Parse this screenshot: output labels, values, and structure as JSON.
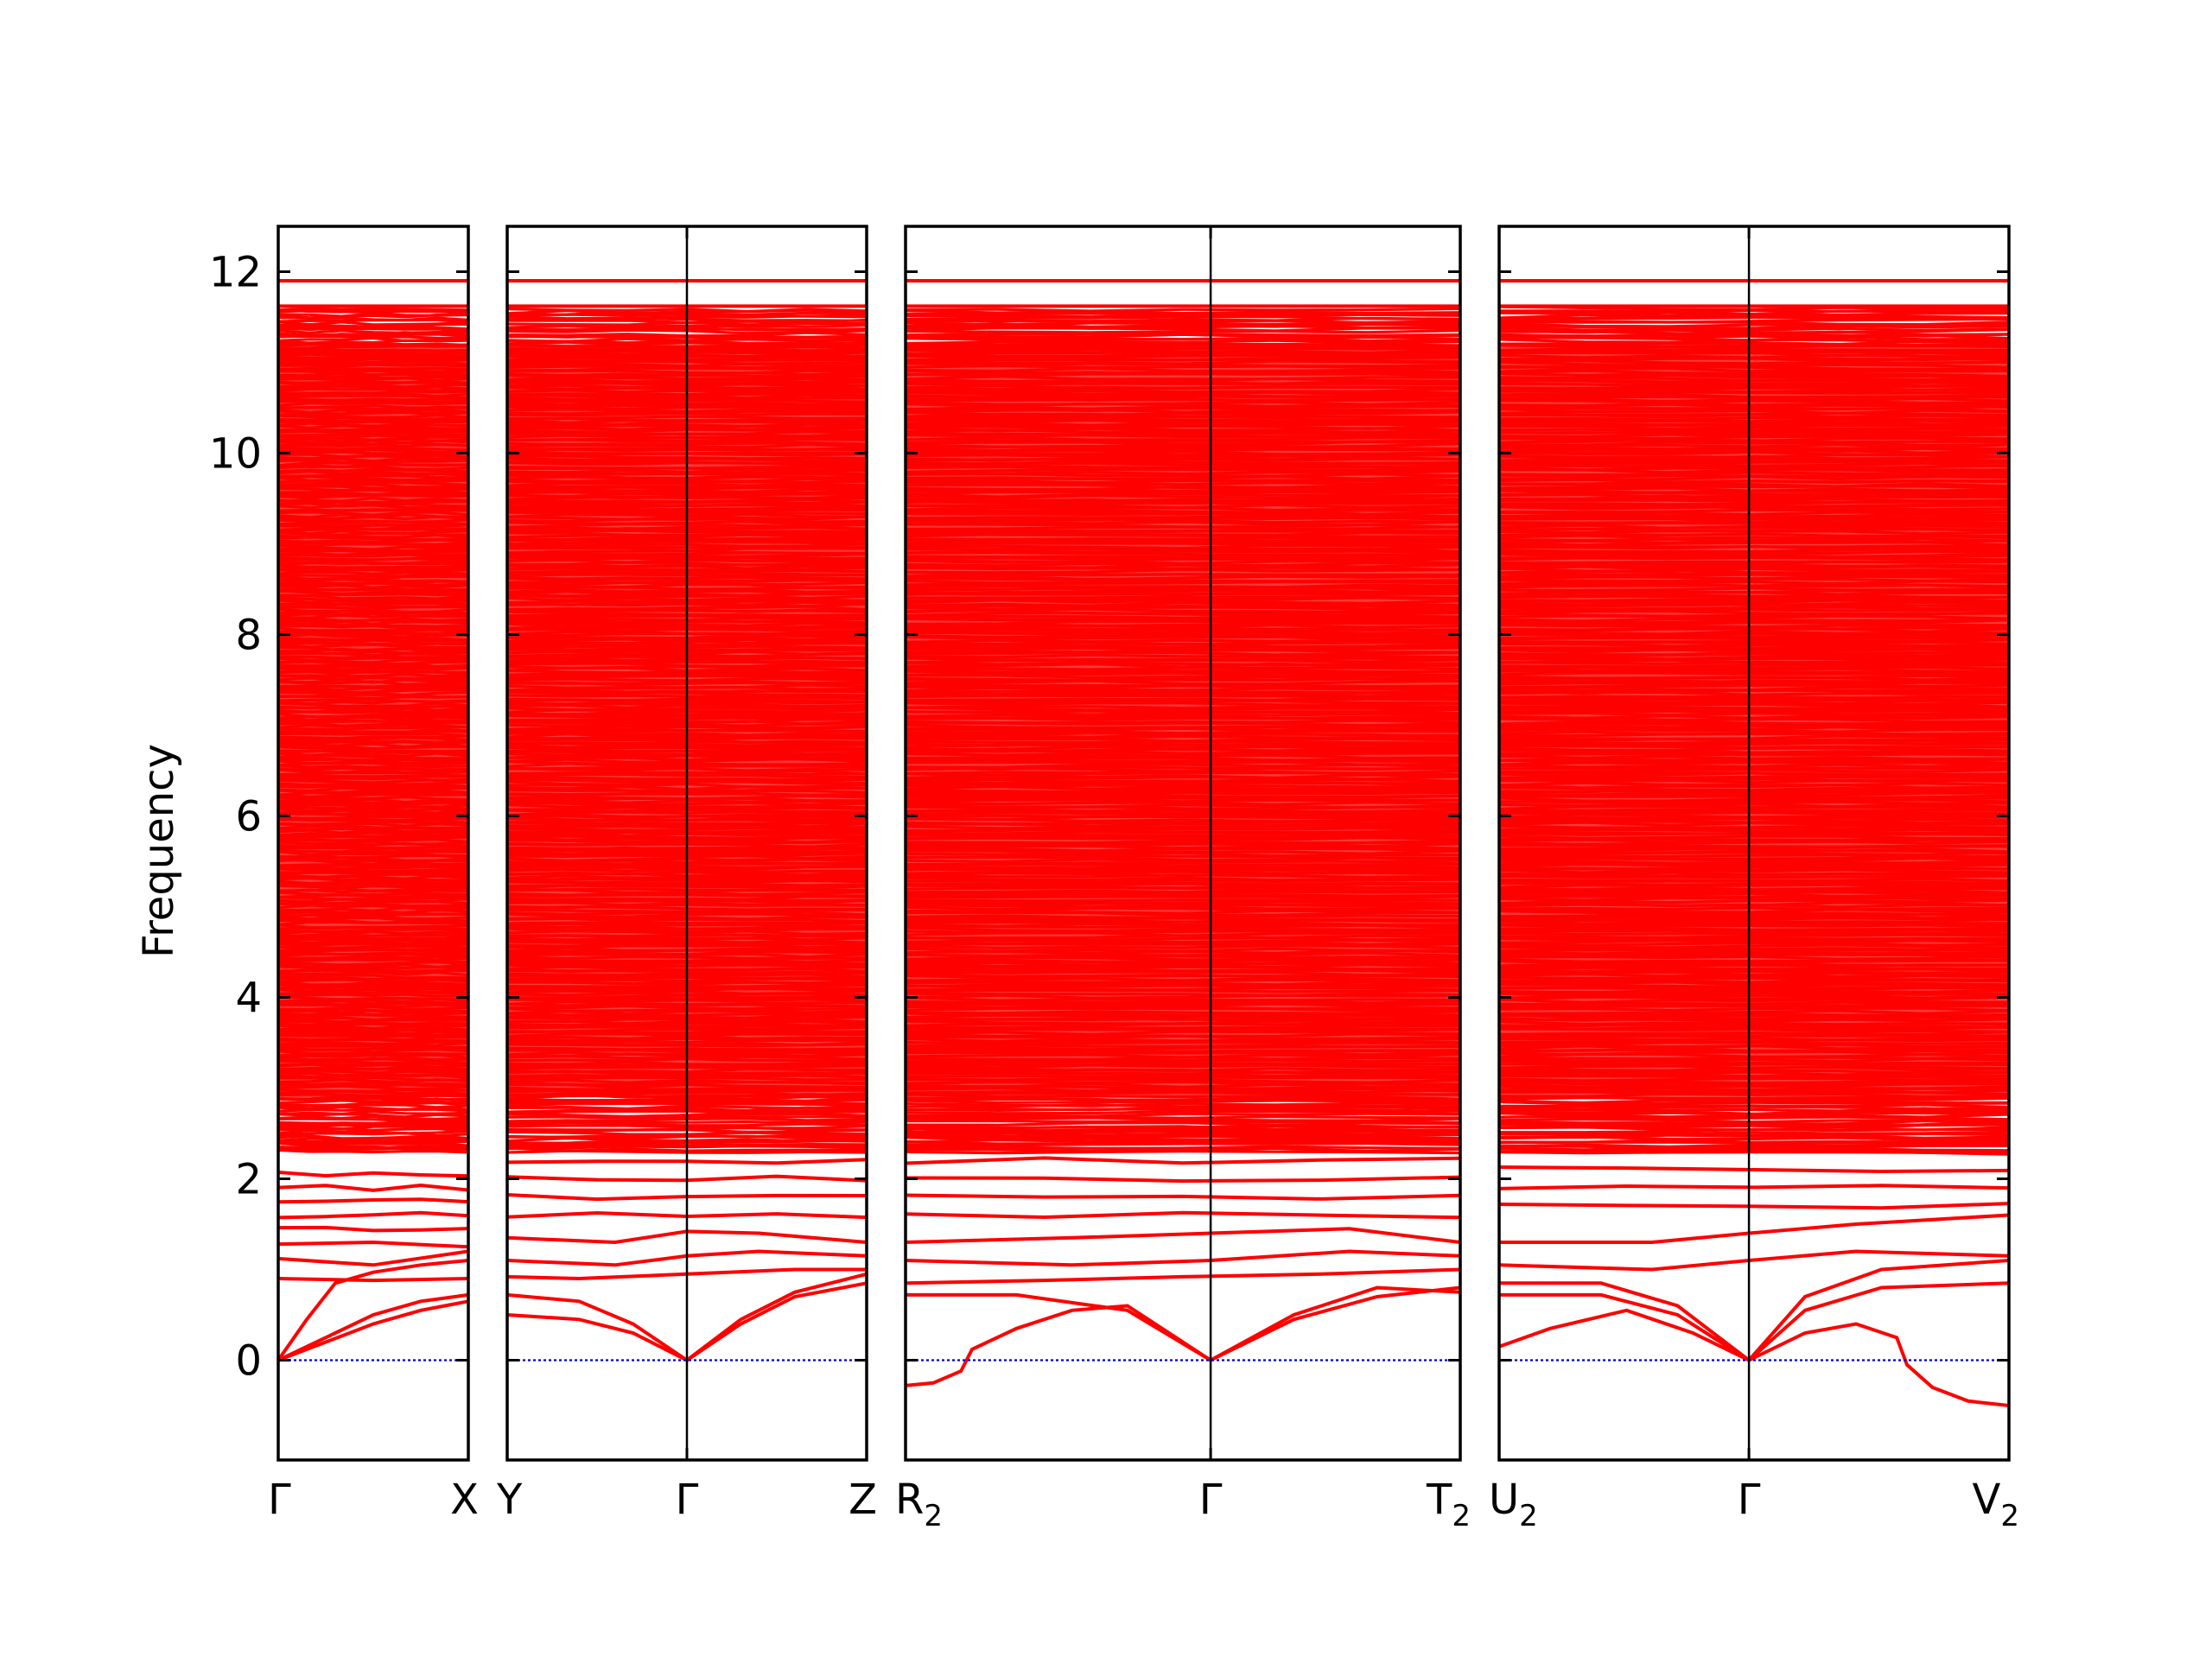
{
  "chart_data": {
    "type": "line",
    "title": "",
    "xlabel": "",
    "ylabel": "Frequency",
    "ylim": [
      -1.1,
      12.5
    ],
    "yticks": [
      0,
      2,
      4,
      6,
      8,
      10,
      12
    ],
    "grid": false,
    "legend": "none",
    "colors": {
      "bands": "#ff0000",
      "zero_line": "#0000cc",
      "frame": "#000000"
    },
    "panels": [
      {
        "xlim": [
          0,
          1
        ],
        "ticks": [
          {
            "x": 0,
            "label": "Γ",
            "sub": ""
          },
          {
            "x": 1,
            "label": "X",
            "sub": ""
          }
        ],
        "bands": [
          {
            "x": [
              0,
              0.25,
              0.5,
              0.75,
              1
            ],
            "y": [
              0,
              0.2,
              0.4,
              0.55,
              0.65
            ]
          },
          {
            "x": [
              0,
              0.25,
              0.5,
              0.75,
              1
            ],
            "y": [
              0,
              0.25,
              0.5,
              0.65,
              0.72
            ]
          },
          {
            "x": [
              0,
              0.15,
              0.3,
              0.5,
              0.75,
              1
            ],
            "y": [
              0,
              0.45,
              0.85,
              0.97,
              1.05,
              1.1
            ]
          },
          {
            "x": [
              0,
              0.5,
              1
            ],
            "y": [
              0.9,
              0.88,
              0.9
            ]
          },
          {
            "x": [
              0,
              0.5,
              1
            ],
            "y": [
              1.12,
              1.05,
              1.2
            ]
          },
          {
            "x": [
              0,
              0.5,
              1
            ],
            "y": [
              1.28,
              1.3,
              1.25
            ]
          }
        ],
        "flat_bands": [
          1.45,
          1.6,
          1.75,
          1.9,
          2.05,
          2.35,
          2.6
        ]
      },
      {
        "xlim": [
          0,
          1
        ],
        "ticks": [
          {
            "x": 0,
            "label": "Y",
            "sub": ""
          },
          {
            "x": 0.5,
            "label": "Γ",
            "sub": ""
          },
          {
            "x": 1,
            "label": "Z",
            "sub": ""
          }
        ],
        "bands": [
          {
            "x": [
              0,
              0.2,
              0.35,
              0.5,
              0.65,
              0.8,
              1
            ],
            "y": [
              0.5,
              0.45,
              0.3,
              0,
              0.4,
              0.7,
              0.85
            ]
          },
          {
            "x": [
              0,
              0.2,
              0.35,
              0.5,
              0.65,
              0.8,
              1
            ],
            "y": [
              0.72,
              0.65,
              0.4,
              0,
              0.45,
              0.75,
              0.95
            ]
          },
          {
            "x": [
              0,
              0.2,
              0.5,
              0.8,
              1
            ],
            "y": [
              0.92,
              0.9,
              0.95,
              1.0,
              1.0
            ]
          },
          {
            "x": [
              0,
              0.3,
              0.5,
              0.7,
              1
            ],
            "y": [
              1.1,
              1.05,
              1.15,
              1.2,
              1.15
            ]
          },
          {
            "x": [
              0,
              0.3,
              0.5,
              0.7,
              1
            ],
            "y": [
              1.35,
              1.3,
              1.42,
              1.4,
              1.3
            ]
          }
        ],
        "flat_bands": [
          1.6,
          1.8,
          2.0,
          2.2,
          2.4
        ]
      },
      {
        "xlim": [
          0,
          1
        ],
        "ticks": [
          {
            "x": 0,
            "label": "R",
            "sub": "2"
          },
          {
            "x": 0.55,
            "label": "Γ",
            "sub": ""
          },
          {
            "x": 1,
            "label": "T",
            "sub": "2"
          }
        ],
        "bands": [
          {
            "x": [
              0,
              0.05,
              0.1,
              0.12,
              0.2,
              0.3,
              0.4,
              0.55,
              0.7,
              0.85,
              1
            ],
            "y": [
              -0.28,
              -0.25,
              -0.12,
              0.12,
              0.35,
              0.55,
              0.6,
              0,
              0.45,
              0.7,
              0.8
            ]
          },
          {
            "x": [
              0,
              0.2,
              0.4,
              0.55,
              0.7,
              0.85,
              1
            ],
            "y": [
              0.72,
              0.72,
              0.55,
              0,
              0.5,
              0.8,
              0.75
            ]
          },
          {
            "x": [
              0,
              0.25,
              0.5,
              0.75,
              1
            ],
            "y": [
              0.85,
              0.88,
              0.92,
              0.95,
              1.0
            ]
          },
          {
            "x": [
              0,
              0.3,
              0.55,
              0.8,
              1
            ],
            "y": [
              1.1,
              1.05,
              1.1,
              1.2,
              1.15
            ]
          },
          {
            "x": [
              0,
              0.3,
              0.55,
              0.8,
              1
            ],
            "y": [
              1.3,
              1.35,
              1.4,
              1.45,
              1.3
            ]
          }
        ],
        "flat_bands": [
          1.6,
          1.8,
          2.0,
          2.2,
          2.45
        ]
      },
      {
        "xlim": [
          0,
          1
        ],
        "ticks": [
          {
            "x": 0,
            "label": "U",
            "sub": "2"
          },
          {
            "x": 0.49,
            "label": "Γ",
            "sub": ""
          },
          {
            "x": 1,
            "label": "V",
            "sub": "2"
          }
        ],
        "bands": [
          {
            "x": [
              0,
              0.1,
              0.25,
              0.38,
              0.49,
              0.6,
              0.7,
              0.78,
              0.8,
              0.85,
              0.92,
              1
            ],
            "y": [
              0.15,
              0.35,
              0.55,
              0.3,
              0,
              0.3,
              0.4,
              0.25,
              -0.05,
              -0.3,
              -0.45,
              -0.5
            ]
          },
          {
            "x": [
              0,
              0.2,
              0.35,
              0.49,
              0.6,
              0.75,
              1
            ],
            "y": [
              0.72,
              0.72,
              0.5,
              0,
              0.55,
              0.8,
              0.85
            ]
          },
          {
            "x": [
              0,
              0.2,
              0.35,
              0.49,
              0.6,
              0.75,
              1
            ],
            "y": [
              0.85,
              0.85,
              0.6,
              0,
              0.7,
              1.0,
              1.1
            ]
          },
          {
            "x": [
              0,
              0.3,
              0.49,
              0.7,
              1
            ],
            "y": [
              1.05,
              1.0,
              1.1,
              1.2,
              1.15
            ]
          },
          {
            "x": [
              0,
              0.3,
              0.49,
              0.7,
              1
            ],
            "y": [
              1.3,
              1.3,
              1.4,
              1.5,
              1.6
            ]
          }
        ],
        "flat_bands": [
          1.7,
          1.9,
          2.1,
          2.3,
          2.6
        ]
      }
    ],
    "dense_band_region": {
      "ymin": 2.3,
      "ymax": 11.6
    },
    "top_bands": [
      11.62,
      11.9
    ]
  }
}
